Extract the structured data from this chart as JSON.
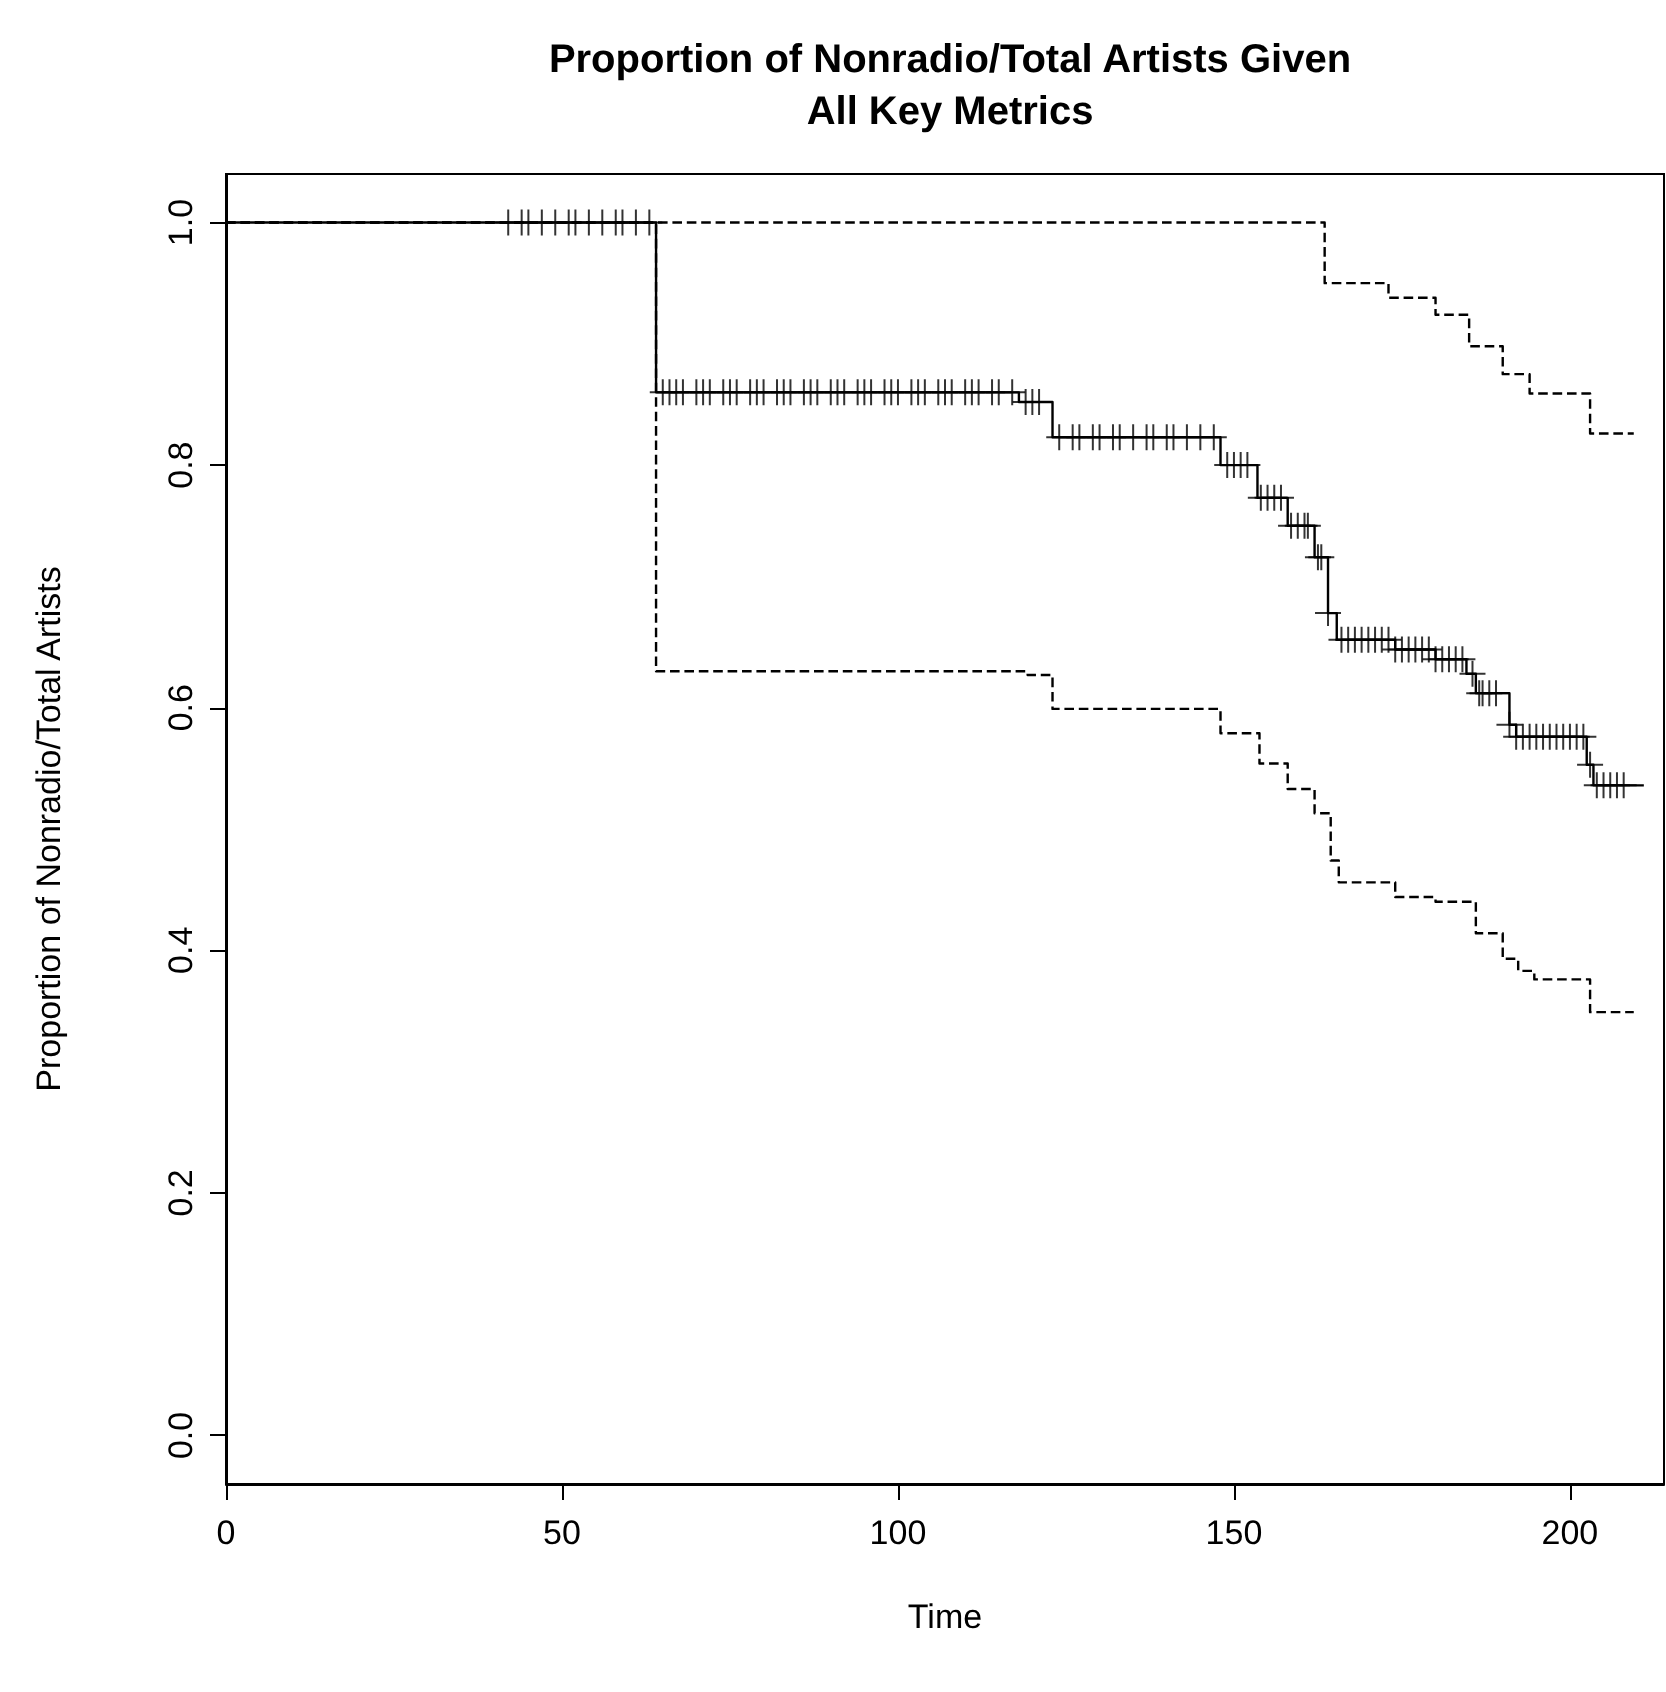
{
  "chart_data": {
    "type": "step",
    "title": "Proportion of Nonradio/Total Artists Given\nAll Key Metrics",
    "xlabel": "Time",
    "ylabel": "Proportion of Nonradio/Total Artists",
    "xlim": [
      0,
      214
    ],
    "ylim": [
      -0.04,
      1.04
    ],
    "xticks": [
      0,
      50,
      100,
      150,
      200
    ],
    "yticks": [
      {
        "value": 0,
        "label": "0.0"
      },
      {
        "value": 0.2,
        "label": "0.2"
      },
      {
        "value": 0.4,
        "label": "0.4"
      },
      {
        "value": 0.6,
        "label": "0.6"
      },
      {
        "value": 0.8,
        "label": "0.8"
      },
      {
        "value": 1,
        "label": "1.0"
      }
    ],
    "grid": false,
    "series": [
      {
        "color": "#000000",
        "line_style": "dashed",
        "x": [
          0,
          64,
          119.3,
          123,
          148,
          153.8,
          158,
          162,
          164.4,
          165.6,
          174,
          180,
          186,
          190,
          192.3,
          194.7,
          203,
          209.5
        ],
        "values": [
          1,
          0.63,
          0.627,
          0.599,
          0.579,
          0.554,
          0.533,
          0.513,
          0.474,
          0.456,
          0.444,
          0.44,
          0.414,
          0.393,
          0.383,
          0.376,
          0.349,
          0.349
        ]
      },
      {
        "color": "#000000",
        "line_style": "dashed",
        "x": [
          0,
          163.5,
          173,
          180,
          185,
          190,
          194,
          203,
          209.5
        ],
        "values": [
          1,
          0.95,
          0.938,
          0.924,
          0.898,
          0.875,
          0.859,
          0.826,
          0.826
        ]
      },
      {
        "color": "#000000",
        "line_style": "solid",
        "x": [
          0,
          64,
          118,
          123,
          148,
          153.5,
          158,
          162,
          164,
          165.3,
          174,
          180,
          184.6,
          186,
          191,
          192,
          202.5,
          203.5,
          211
        ],
        "values": [
          1,
          0.86,
          0.852,
          0.823,
          0.8,
          0.773,
          0.75,
          0.724,
          0.678,
          0.656,
          0.648,
          0.64,
          0.628,
          0.612,
          0.586,
          0.576,
          0.553,
          0.536,
          0.536
        ]
      },
      {
        "type": "scatter",
        "marker": "cross",
        "color": "#000000",
        "x": [
          42,
          44,
          45,
          47,
          49,
          51,
          52,
          54,
          56,
          58,
          59,
          61,
          63,
          65,
          66,
          67,
          68,
          70,
          71,
          72,
          74,
          75,
          76,
          78,
          79,
          80,
          82,
          83,
          84,
          86,
          87,
          88,
          90,
          91,
          92,
          94,
          95,
          96,
          98,
          99,
          100,
          102,
          103,
          104,
          106,
          107,
          108,
          110,
          111,
          112,
          114,
          115,
          117,
          119,
          120,
          121,
          124,
          126,
          127,
          129,
          130,
          132,
          133,
          135,
          137,
          138,
          140,
          141,
          143,
          145,
          147,
          149,
          150,
          151,
          152,
          154,
          155,
          156,
          157,
          158.5,
          159.5,
          160.5,
          161,
          162.5,
          163,
          164,
          166,
          167,
          168,
          169,
          170,
          171,
          172,
          173,
          174,
          175,
          176,
          177,
          178,
          179,
          180,
          181,
          182,
          183,
          184,
          185.5,
          186.5,
          187,
          188,
          189,
          191,
          192,
          193,
          194,
          195,
          196,
          197,
          198,
          199,
          200,
          201,
          202,
          203,
          204,
          205,
          206,
          207,
          208
        ],
        "values": [
          1,
          1,
          1,
          1,
          1,
          1,
          1,
          1,
          1,
          1,
          1,
          1,
          1,
          0.86,
          0.86,
          0.86,
          0.86,
          0.86,
          0.86,
          0.86,
          0.86,
          0.86,
          0.86,
          0.86,
          0.86,
          0.86,
          0.86,
          0.86,
          0.86,
          0.86,
          0.86,
          0.86,
          0.86,
          0.86,
          0.86,
          0.86,
          0.86,
          0.86,
          0.86,
          0.86,
          0.86,
          0.86,
          0.86,
          0.86,
          0.86,
          0.86,
          0.86,
          0.86,
          0.86,
          0.86,
          0.86,
          0.86,
          0.86,
          0.852,
          0.852,
          0.852,
          0.823,
          0.823,
          0.823,
          0.823,
          0.823,
          0.823,
          0.823,
          0.823,
          0.823,
          0.823,
          0.823,
          0.823,
          0.823,
          0.823,
          0.823,
          0.8,
          0.8,
          0.8,
          0.8,
          0.773,
          0.773,
          0.773,
          0.773,
          0.75,
          0.75,
          0.75,
          0.75,
          0.724,
          0.724,
          0.678,
          0.656,
          0.656,
          0.656,
          0.656,
          0.656,
          0.656,
          0.656,
          0.656,
          0.648,
          0.648,
          0.648,
          0.648,
          0.648,
          0.648,
          0.64,
          0.64,
          0.64,
          0.64,
          0.64,
          0.628,
          0.612,
          0.612,
          0.612,
          0.612,
          0.586,
          0.576,
          0.576,
          0.576,
          0.576,
          0.576,
          0.576,
          0.576,
          0.576,
          0.576,
          0.576,
          0.576,
          0.553,
          0.536,
          0.536,
          0.536,
          0.536,
          0.536
        ]
      }
    ]
  }
}
